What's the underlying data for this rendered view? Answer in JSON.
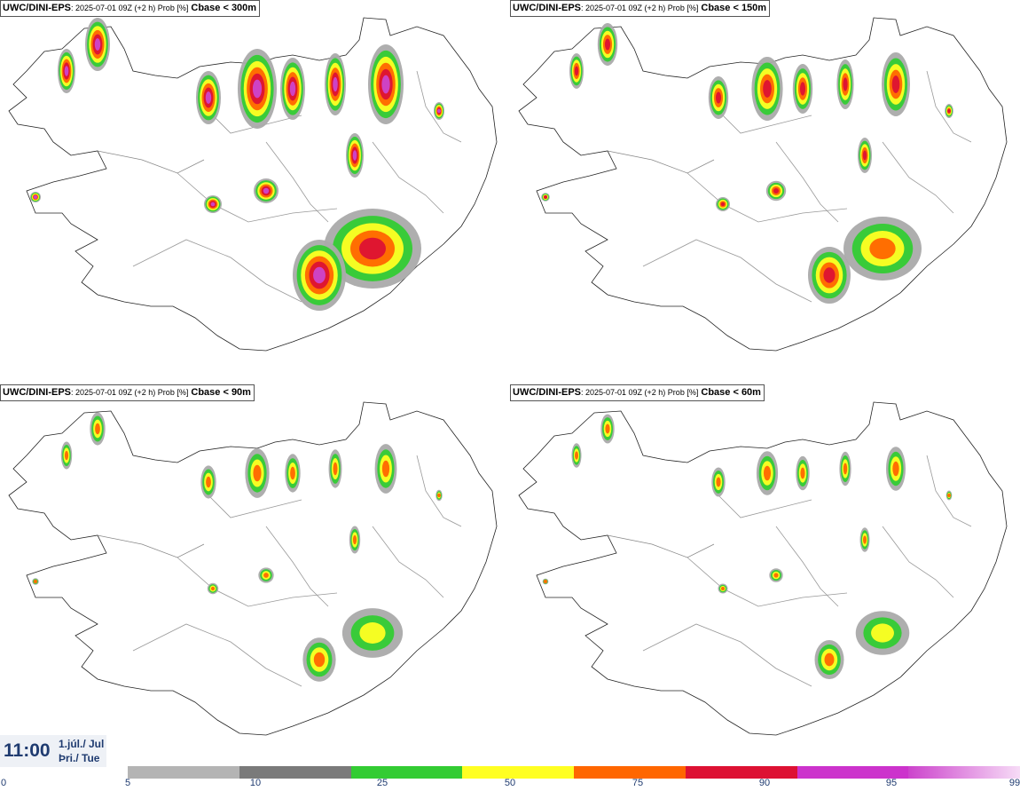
{
  "panels": [
    {
      "model": "UWC/DINI-EPS",
      "meta": ": 2025-07-01 09Z (+2 h) Prob [%]",
      "param": "Cbase < 300m",
      "level": 1.0
    },
    {
      "model": "UWC/DINI-EPS",
      "meta": ": 2025-07-01 09Z (+2 h) Prob [%]",
      "param": "Cbase < 150m",
      "level": 0.8
    },
    {
      "model": "UWC/DINI-EPS",
      "meta": ": 2025-07-01 09Z (+2 h) Prob [%]",
      "param": "Cbase < 90m",
      "level": 0.62
    },
    {
      "model": "UWC/DINI-EPS",
      "meta": ": 2025-07-01 09Z (+2 h) Prob [%]",
      "param": "Cbase < 60m",
      "level": 0.55
    }
  ],
  "timestamp": {
    "time": "11:00",
    "date_line1": "1.júl./ Jul",
    "date_line2": "Þri./ Tue"
  },
  "colorbar": {
    "ticks": [
      "0",
      "5",
      "10",
      "25",
      "50",
      "75",
      "90",
      "95",
      "99"
    ],
    "colors": [
      "#b4b4b4",
      "#7a7a7a",
      "#33cc33",
      "#ffff22",
      "#ff6600",
      "#dd1133",
      "#cc33cc",
      "#f0c8f0"
    ]
  }
}
